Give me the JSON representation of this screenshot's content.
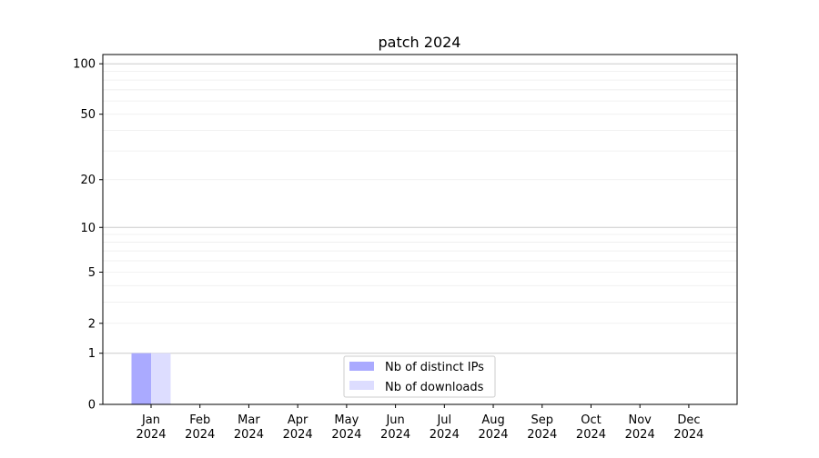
{
  "chart_data": {
    "type": "bar",
    "title": "patch 2024",
    "xlabel": "",
    "ylabel": "",
    "y_scale": "log(1+y)",
    "ylim": [
      0,
      113.5
    ],
    "grid": true,
    "legend_position": "lower-center",
    "categories": [
      "Jan\n2024",
      "Feb\n2024",
      "Mar\n2024",
      "Apr\n2024",
      "May\n2024",
      "Jun\n2024",
      "Jul\n2024",
      "Aug\n2024",
      "Sep\n2024",
      "Oct\n2024",
      "Nov\n2024",
      "Dec\n2024"
    ],
    "y_ticks": [
      0,
      1,
      2,
      5,
      10,
      20,
      50,
      100
    ],
    "y_tick_labels": [
      "0",
      "1",
      "2",
      "5",
      "10",
      "20",
      "50",
      "100"
    ],
    "series": [
      {
        "name": "Nb of distinct IPs",
        "color": "#aaaaff",
        "values": [
          1,
          0,
          0,
          0,
          0,
          0,
          0,
          0,
          0,
          0,
          0,
          0
        ]
      },
      {
        "name": "Nb of downloads",
        "color": "#ddddff",
        "values": [
          1,
          0,
          0,
          0,
          0,
          0,
          0,
          0,
          0,
          0,
          0,
          0
        ]
      }
    ]
  }
}
